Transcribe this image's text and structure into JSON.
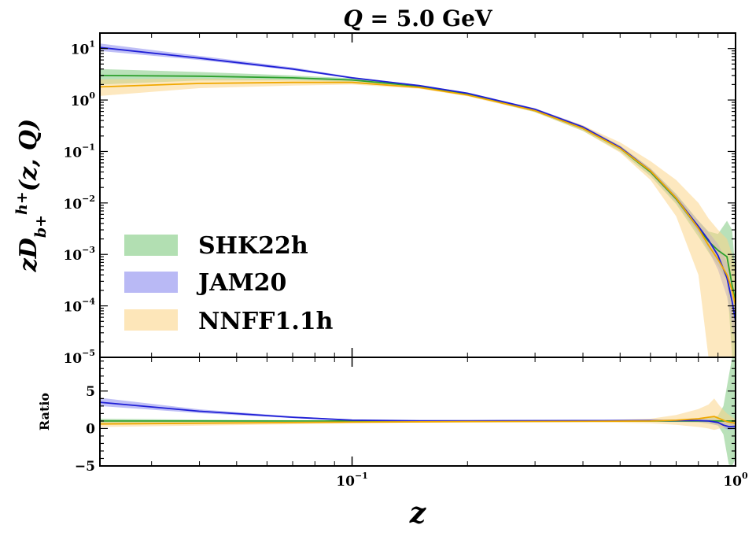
{
  "chart_data": [
    {
      "type": "line",
      "panel": "main",
      "title": "Q = 5.0 GeV",
      "ylabel": "zD_{b+}^{h+}(z, Q)",
      "xlabel": "z",
      "xscale": "log",
      "yscale": "log",
      "xlim": [
        0.022,
        1.0
      ],
      "ylim": [
        1e-05,
        20
      ],
      "x_ticks": [
        {
          "label": "10",
          "exp": "−1"
        },
        {
          "label": "10",
          "exp": "0"
        }
      ],
      "y_ticks": [
        {
          "label": "10",
          "exp": "1"
        },
        {
          "label": "10",
          "exp": "0"
        },
        {
          "label": "10",
          "exp": "−1"
        },
        {
          "label": "10",
          "exp": "−2"
        },
        {
          "label": "10",
          "exp": "−3"
        },
        {
          "label": "10",
          "exp": "−4"
        },
        {
          "label": "10",
          "exp": "−5"
        }
      ],
      "legend_position": "lower-left",
      "series": [
        {
          "name": "SHK22h",
          "color": "#2ca02c",
          "band_color": "#7fc97f",
          "x": [
            0.022,
            0.04,
            0.07,
            0.1,
            0.15,
            0.2,
            0.3,
            0.4,
            0.5,
            0.6,
            0.7,
            0.8,
            0.85,
            0.9,
            0.95,
            0.98,
            1.0
          ],
          "y": [
            3.0,
            2.9,
            2.7,
            2.45,
            1.85,
            1.3,
            0.62,
            0.28,
            0.115,
            0.04,
            0.012,
            0.0032,
            0.0018,
            0.0012,
            0.0009,
            0.00025,
            0.00012
          ],
          "lower": [
            2.0,
            2.4,
            2.4,
            2.25,
            1.75,
            1.24,
            0.58,
            0.25,
            0.1,
            0.033,
            0.0095,
            0.0022,
            0.0011,
            0.0006,
            0.0003,
            1e-05,
            1e-05
          ],
          "upper": [
            4.0,
            3.5,
            3.0,
            2.65,
            1.95,
            1.36,
            0.66,
            0.31,
            0.13,
            0.047,
            0.015,
            0.0045,
            0.0028,
            0.0025,
            0.0045,
            0.003,
            0.0004
          ]
        },
        {
          "name": "JAM20",
          "color": "#1f1fd6",
          "band_color": "#8a8aee",
          "x": [
            0.022,
            0.04,
            0.07,
            0.1,
            0.15,
            0.2,
            0.3,
            0.4,
            0.5,
            0.6,
            0.7,
            0.8,
            0.85,
            0.9,
            0.95,
            0.98,
            1.0
          ],
          "y": [
            10.5,
            6.5,
            4.0,
            2.7,
            1.9,
            1.35,
            0.66,
            0.3,
            0.12,
            0.042,
            0.0125,
            0.0035,
            0.0019,
            0.00095,
            0.00035,
            0.00012,
            5e-05
          ],
          "lower": [
            9.0,
            6.0,
            3.8,
            2.6,
            1.85,
            1.3,
            0.63,
            0.28,
            0.11,
            0.037,
            0.0105,
            0.0026,
            0.0012,
            0.0005,
            0.00015,
            4e-05,
            2e-05
          ],
          "upper": [
            12.5,
            7.2,
            4.3,
            2.8,
            1.95,
            1.4,
            0.69,
            0.32,
            0.13,
            0.047,
            0.0145,
            0.0045,
            0.0027,
            0.0016,
            0.0007,
            0.00025,
            0.0001
          ]
        },
        {
          "name": "NNFF1.1h",
          "color": "#f0a800",
          "band_color": "#fcd58a",
          "x": [
            0.022,
            0.04,
            0.07,
            0.1,
            0.15,
            0.2,
            0.3,
            0.4,
            0.5,
            0.6,
            0.7,
            0.8,
            0.85,
            0.9,
            0.95,
            0.98,
            1.0
          ],
          "y": [
            1.8,
            2.1,
            2.2,
            2.2,
            1.75,
            1.25,
            0.62,
            0.28,
            0.115,
            0.042,
            0.0125,
            0.0032,
            0.0015,
            0.0008,
            0.0004,
            0.0002,
            0.0001
          ],
          "lower": [
            1.2,
            1.7,
            1.9,
            2.0,
            1.65,
            1.18,
            0.58,
            0.25,
            0.095,
            0.028,
            0.0055,
            0.0004,
            1e-05,
            1e-05,
            1e-05,
            1e-05,
            1e-05
          ],
          "upper": [
            2.5,
            2.6,
            2.5,
            2.4,
            1.85,
            1.33,
            0.67,
            0.32,
            0.15,
            0.065,
            0.028,
            0.01,
            0.005,
            0.003,
            0.002,
            0.001,
            0.0005
          ]
        }
      ]
    },
    {
      "type": "line",
      "panel": "ratio",
      "ylabel": "Ratio",
      "xscale": "log",
      "xlim": [
        0.022,
        1.0
      ],
      "ylim": [
        -5,
        9.5
      ],
      "y_ticks": [
        "5",
        "0",
        "−5"
      ],
      "series": [
        {
          "name": "SHK22h",
          "color": "#2ca02c",
          "band_color": "#7fc97f",
          "x": [
            0.022,
            0.05,
            0.1,
            0.2,
            0.4,
            0.6,
            0.8,
            0.85,
            0.9,
            0.93,
            0.96,
            0.98,
            1.0
          ],
          "y": [
            1.0,
            1.0,
            1.0,
            1.0,
            1.0,
            1.0,
            1.0,
            1.0,
            1.0,
            1.0,
            1.0,
            1.0,
            1.0
          ],
          "lower": [
            0.7,
            0.85,
            0.95,
            0.97,
            0.97,
            0.93,
            0.8,
            0.65,
            0.4,
            -0.8,
            -4.8,
            -5.0,
            -4.0
          ],
          "upper": [
            1.3,
            1.15,
            1.05,
            1.03,
            1.03,
            1.07,
            1.2,
            1.4,
            1.7,
            3.0,
            7.0,
            9.5,
            9.5
          ]
        },
        {
          "name": "JAM20",
          "color": "#1f1fd6",
          "band_color": "#8a8aee",
          "x": [
            0.022,
            0.04,
            0.07,
            0.1,
            0.15,
            0.2,
            0.4,
            0.6,
            0.8,
            0.85,
            0.9,
            0.93,
            0.96,
            1.0
          ],
          "y": [
            3.5,
            2.3,
            1.5,
            1.12,
            1.03,
            1.03,
            1.05,
            1.06,
            1.05,
            1.0,
            0.8,
            0.45,
            0.25,
            0.3
          ],
          "lower": [
            3.0,
            2.05,
            1.38,
            1.06,
            0.99,
            0.99,
            1.0,
            0.98,
            0.85,
            0.7,
            0.4,
            0.1,
            -0.2,
            -0.1
          ],
          "upper": [
            4.1,
            2.55,
            1.62,
            1.18,
            1.07,
            1.07,
            1.1,
            1.14,
            1.25,
            1.3,
            1.2,
            0.9,
            0.7,
            0.7
          ]
        },
        {
          "name": "NNFF1.1h",
          "color": "#f0a800",
          "band_color": "#fcd58a",
          "x": [
            0.022,
            0.05,
            0.1,
            0.2,
            0.4,
            0.6,
            0.7,
            0.8,
            0.85,
            0.88,
            0.91,
            0.95,
            1.0
          ],
          "y": [
            0.6,
            0.75,
            0.85,
            0.92,
            0.95,
            1.0,
            1.1,
            1.3,
            1.5,
            1.6,
            1.3,
            0.9,
            0.7
          ],
          "lower": [
            0.2,
            0.45,
            0.7,
            0.85,
            0.85,
            0.7,
            0.5,
            0.2,
            0.0,
            -0.2,
            0.0,
            0.2,
            0.3
          ],
          "upper": [
            1.1,
            1.05,
            1.0,
            1.0,
            1.05,
            1.3,
            1.8,
            2.6,
            3.2,
            4.0,
            3.0,
            2.0,
            1.2
          ]
        }
      ]
    }
  ]
}
